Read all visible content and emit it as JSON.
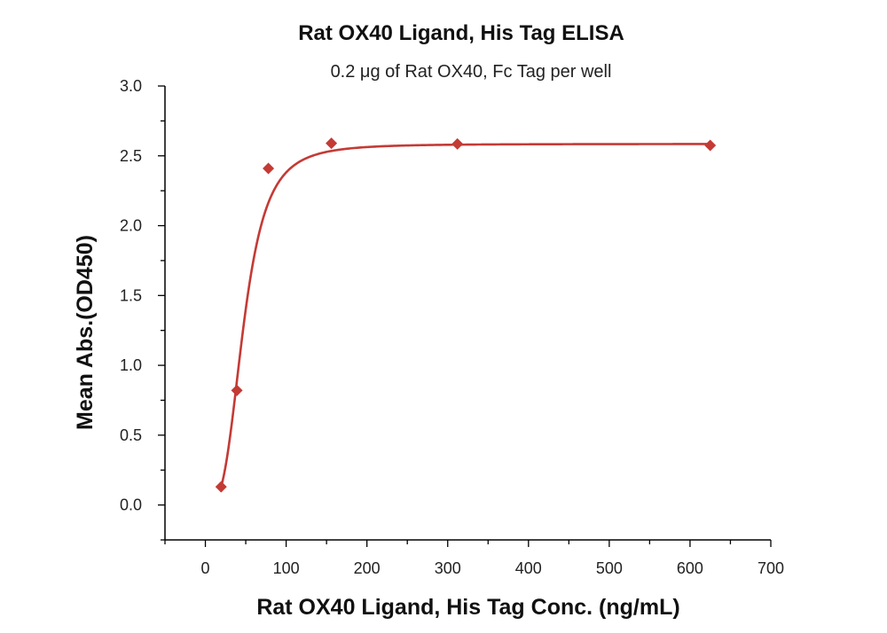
{
  "chart_data": {
    "type": "scatter",
    "title": "Rat OX40 Ligand, His Tag ELISA",
    "subtitle": "0.2 μg of Rat OX40, Fc Tag per well",
    "xlabel": "Rat OX40 Ligand, His Tag Conc. (ng/mL)",
    "ylabel": "Mean Abs.(OD450)",
    "xlim": [
      -50,
      700
    ],
    "ylim": [
      -0.25,
      3.0
    ],
    "xticks": [
      0,
      100,
      200,
      300,
      400,
      500,
      600,
      700
    ],
    "xtick_labels": [
      "0",
      "100",
      "200",
      "300",
      "400",
      "500",
      "600",
      "700"
    ],
    "yticks": [
      0.0,
      0.5,
      1.0,
      1.5,
      2.0,
      2.5,
      3.0
    ],
    "ytick_labels": [
      "0.0",
      "0.5",
      "1.0",
      "1.5",
      "2.0",
      "2.5",
      "3.0"
    ],
    "series": [
      {
        "x": [
          19.5,
          39,
          78,
          156,
          312,
          625
        ],
        "y": [
          0.13,
          0.82,
          2.41,
          2.59,
          2.585,
          2.575
        ],
        "marker": "diamond",
        "fit": "sigmoidal"
      }
    ],
    "grid": false,
    "colors": {
      "series": "#c43a35",
      "axis": "#000000"
    }
  }
}
